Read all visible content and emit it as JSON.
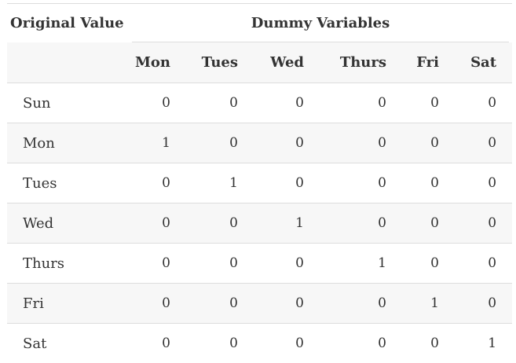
{
  "table": {
    "group_header": {
      "original_value": "Original Value",
      "dummy_variables": "Dummy Variables"
    },
    "columns": [
      "Mon",
      "Tues",
      "Wed",
      "Thurs",
      "Fri",
      "Sat"
    ],
    "rows": [
      {
        "label": "Sun",
        "values": [
          "0",
          "0",
          "0",
          "0",
          "0",
          "0"
        ]
      },
      {
        "label": "Mon",
        "values": [
          "1",
          "0",
          "0",
          "0",
          "0",
          "0"
        ]
      },
      {
        "label": "Tues",
        "values": [
          "0",
          "1",
          "0",
          "0",
          "0",
          "0"
        ]
      },
      {
        "label": "Wed",
        "values": [
          "0",
          "0",
          "1",
          "0",
          "0",
          "0"
        ]
      },
      {
        "label": "Thurs",
        "values": [
          "0",
          "0",
          "0",
          "1",
          "0",
          "0"
        ]
      },
      {
        "label": "Fri",
        "values": [
          "0",
          "0",
          "0",
          "0",
          "1",
          "0"
        ]
      },
      {
        "label": "Sat",
        "values": [
          "0",
          "0",
          "0",
          "0",
          "0",
          "1"
        ]
      }
    ]
  }
}
